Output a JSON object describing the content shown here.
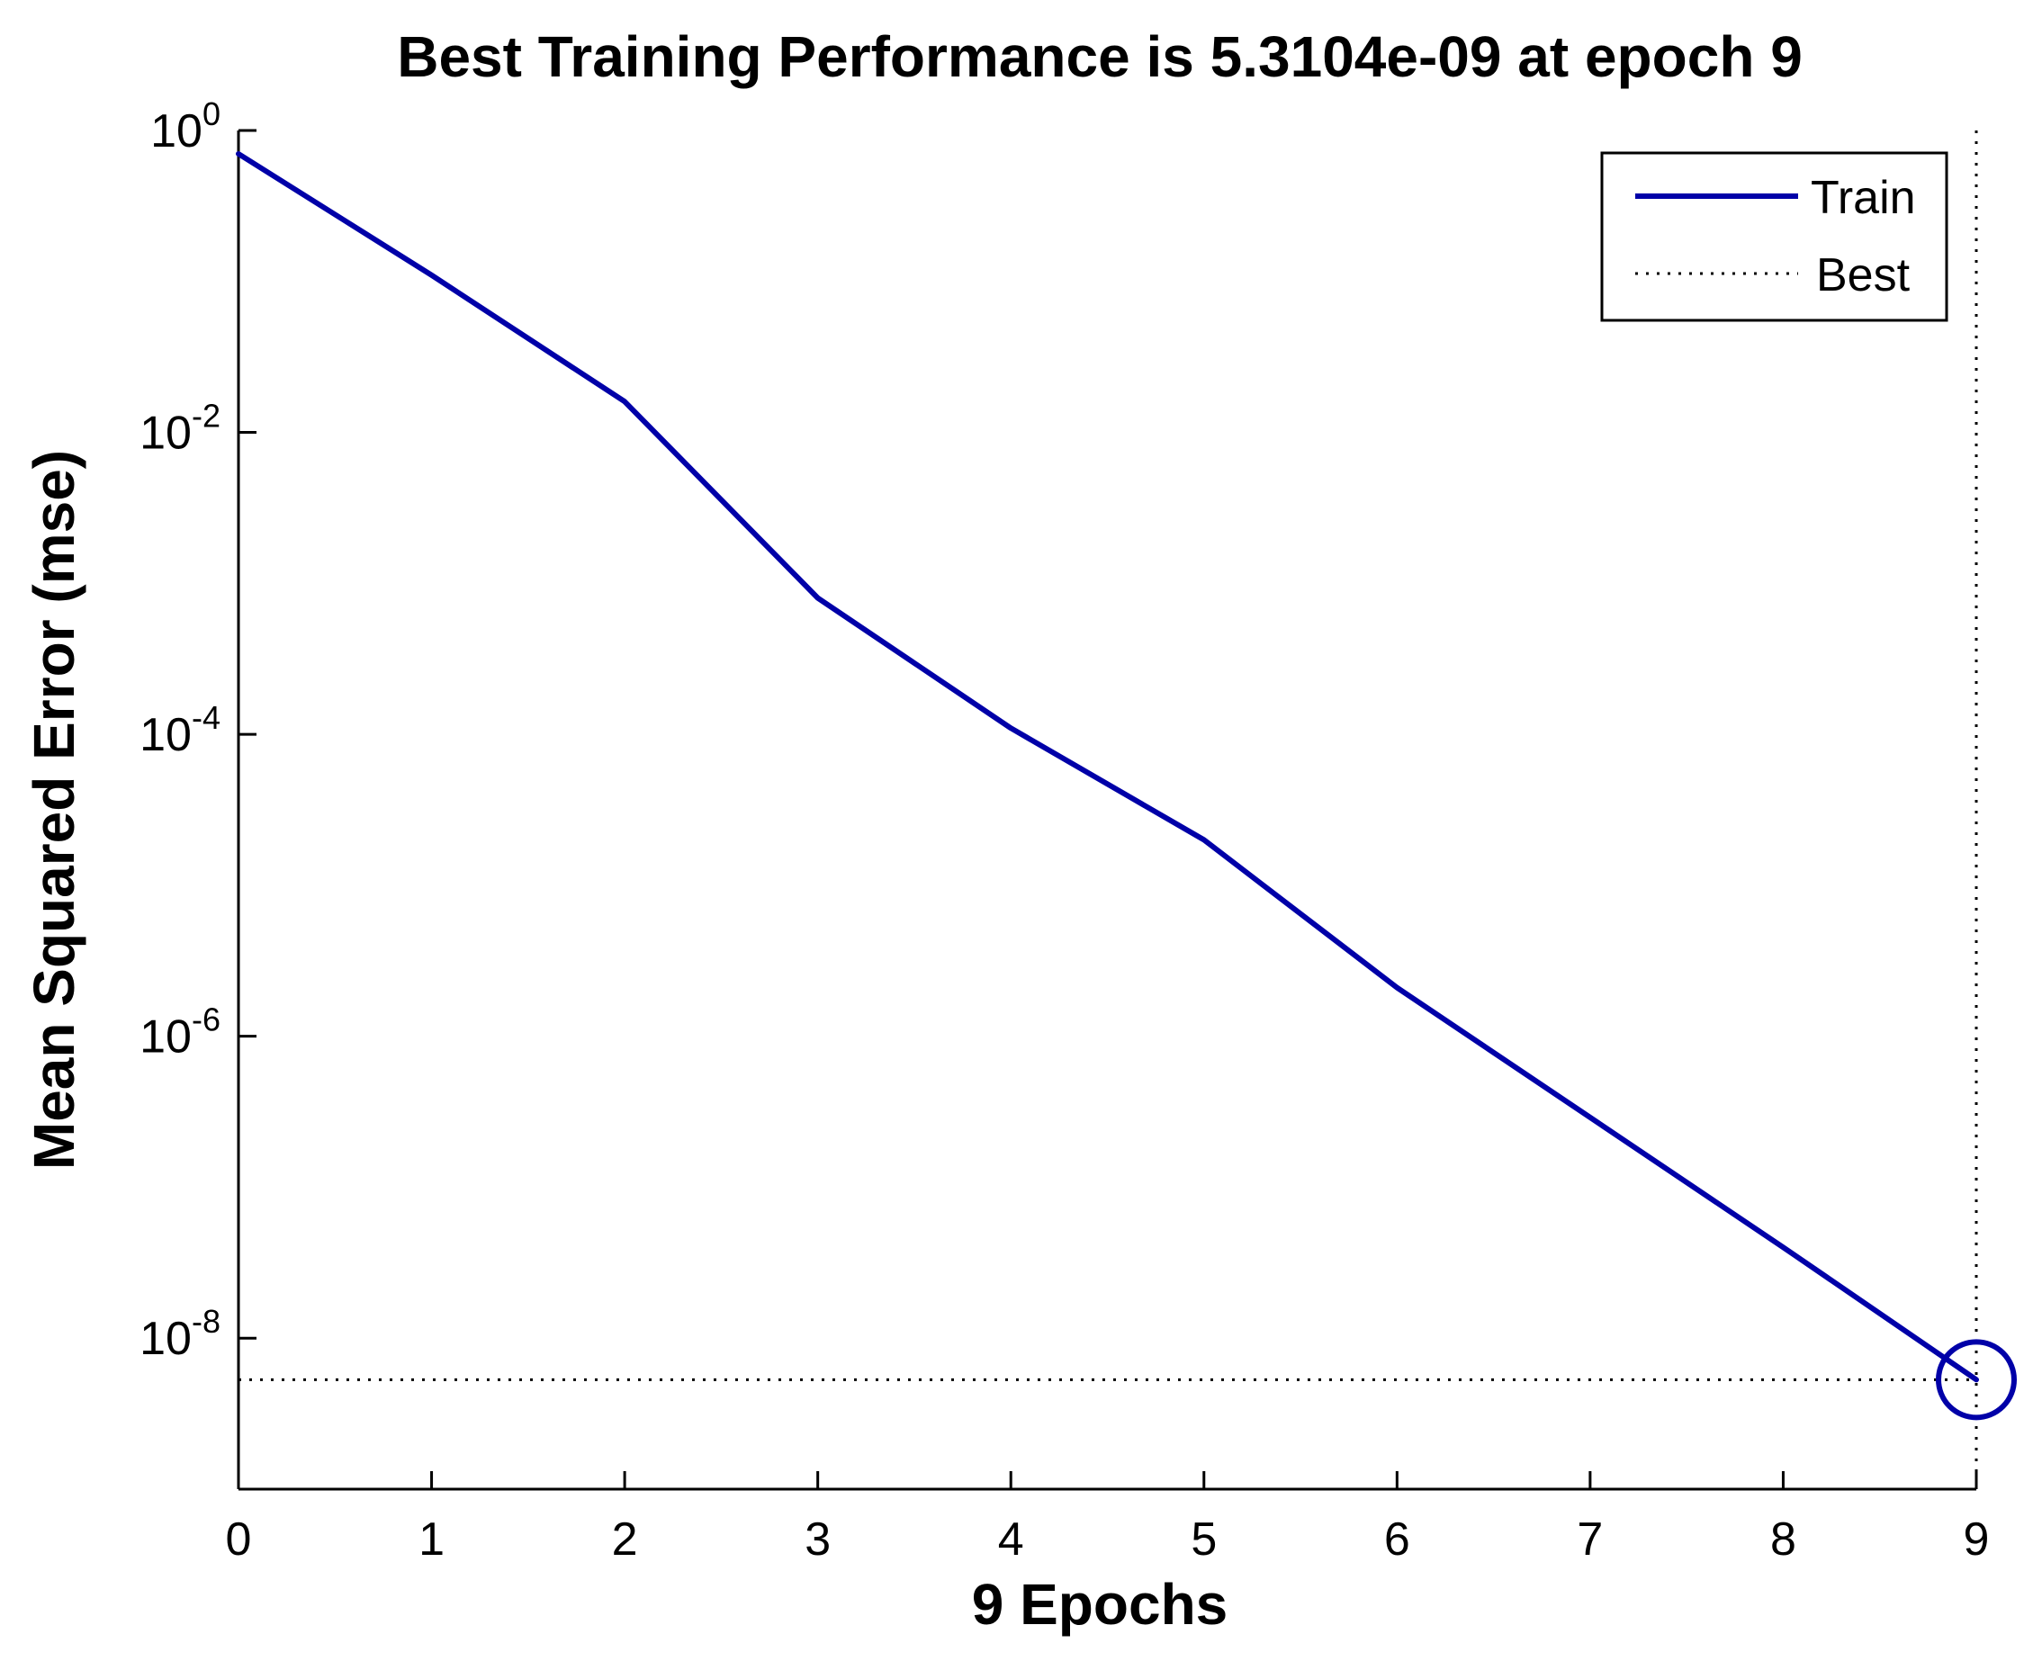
{
  "chart_data": {
    "type": "line",
    "title": "Best Training Performance is 5.3104e-09 at epoch 9",
    "xlabel": "9 Epochs",
    "ylabel": "Mean Squared Error  (mse)",
    "x_scale": "linear",
    "y_scale": "log",
    "xlim": [
      0,
      9
    ],
    "ylim": [
      1e-09,
      1
    ],
    "x_ticks": [
      {
        "value": 0,
        "label": "0"
      },
      {
        "value": 1,
        "label": "1"
      },
      {
        "value": 2,
        "label": "2"
      },
      {
        "value": 3,
        "label": "3"
      },
      {
        "value": 4,
        "label": "4"
      },
      {
        "value": 5,
        "label": "5"
      },
      {
        "value": 6,
        "label": "6"
      },
      {
        "value": 7,
        "label": "7"
      },
      {
        "value": 8,
        "label": "8"
      },
      {
        "value": 9,
        "label": "9"
      }
    ],
    "y_ticks": [
      {
        "value": 1,
        "base": "10",
        "exp": "0"
      },
      {
        "value": 0.01,
        "base": "10",
        "exp": "-2"
      },
      {
        "value": 0.0001,
        "base": "10",
        "exp": "-4"
      },
      {
        "value": 1e-06,
        "base": "10",
        "exp": "-6"
      },
      {
        "value": 1e-08,
        "base": "10",
        "exp": "-8"
      }
    ],
    "grid": false,
    "legend_position": "top-right",
    "series": [
      {
        "name": "Train",
        "color": "#0000a8",
        "style": "solid",
        "x": [
          0,
          1,
          2,
          3,
          4,
          5,
          6,
          7,
          8,
          9
        ],
        "y": [
          0.7,
          0.11,
          0.016,
          0.0008,
          0.00011,
          2e-05,
          2.1e-06,
          2.9e-07,
          4e-08,
          5.3104e-09
        ]
      }
    ],
    "best": {
      "name": "Best",
      "epoch": 9,
      "value": 5.3104e-09,
      "line_style": "dotted",
      "marker": "circle",
      "marker_color": "#0000a8"
    }
  }
}
